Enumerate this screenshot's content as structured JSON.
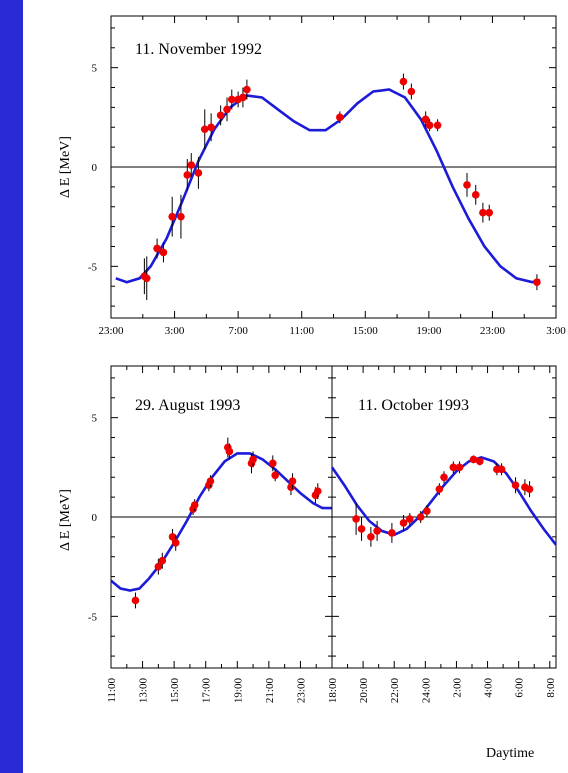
{
  "colors": {
    "background": "#2a2ad6",
    "paper": "#ffffff",
    "fit_line": "#1c1cd8",
    "points": "#ee0000"
  },
  "xlabel": "Daytime",
  "chart_data": [
    {
      "type": "scatter",
      "title": "11. November 1992",
      "ylabel": "Δ E [MeV]",
      "ylim": [
        -7.6,
        7.6
      ],
      "yticks": [
        5,
        0,
        -5
      ],
      "ytick_labels": [
        "5",
        "0",
        "-5"
      ],
      "x_unit": "hours since 23:00",
      "xlim": [
        0,
        28
      ],
      "xticks": [
        0,
        4,
        8,
        12,
        16,
        20,
        24,
        28
      ],
      "xtick_labels": [
        "23:00",
        "3:00",
        "7:00",
        "11:00",
        "15:00",
        "19:00",
        "23:00",
        "3:00"
      ],
      "grid": false,
      "series": [
        {
          "kind": "points_with_errors",
          "points": [
            {
              "x": 2.1,
              "y": -5.5,
              "err": 0.9
            },
            {
              "x": 2.25,
              "y": -5.6,
              "err": 1.1
            },
            {
              "x": 2.9,
              "y": -4.1,
              "err": 0.5
            },
            {
              "x": 3.3,
              "y": -4.3,
              "err": 0.5
            },
            {
              "x": 3.85,
              "y": -2.5,
              "err": 1.0
            },
            {
              "x": 4.4,
              "y": -2.5,
              "err": 1.1
            },
            {
              "x": 4.8,
              "y": -0.4,
              "err": 0.8
            },
            {
              "x": 5.05,
              "y": 0.1,
              "err": 0.6
            },
            {
              "x": 5.5,
              "y": -0.3,
              "err": 0.8
            },
            {
              "x": 5.9,
              "y": 1.9,
              "err": 1.0
            },
            {
              "x": 6.3,
              "y": 2.0,
              "err": 0.7
            },
            {
              "x": 6.9,
              "y": 2.6,
              "err": 0.5
            },
            {
              "x": 7.3,
              "y": 2.9,
              "err": 0.6
            },
            {
              "x": 7.6,
              "y": 3.4,
              "err": 0.5
            },
            {
              "x": 8.0,
              "y": 3.4,
              "err": 0.4
            },
            {
              "x": 8.3,
              "y": 3.5,
              "err": 0.5
            },
            {
              "x": 8.55,
              "y": 3.9,
              "err": 0.5
            },
            {
              "x": 14.4,
              "y": 2.5,
              "err": 0.3
            },
            {
              "x": 18.4,
              "y": 4.3,
              "err": 0.4
            },
            {
              "x": 18.9,
              "y": 3.8,
              "err": 0.4
            },
            {
              "x": 19.8,
              "y": 2.4,
              "err": 0.4
            },
            {
              "x": 20.05,
              "y": 2.1,
              "err": 0.3
            },
            {
              "x": 20.55,
              "y": 2.1,
              "err": 0.3
            },
            {
              "x": 22.4,
              "y": -0.9,
              "err": 0.6
            },
            {
              "x": 22.95,
              "y": -1.4,
              "err": 0.5
            },
            {
              "x": 23.4,
              "y": -2.3,
              "err": 0.5
            },
            {
              "x": 23.8,
              "y": -2.3,
              "err": 0.4
            },
            {
              "x": 26.8,
              "y": -5.8,
              "err": 0.4
            }
          ]
        },
        {
          "kind": "fit_line",
          "x": [
            0.3,
            1.0,
            1.8,
            2.5,
            3.5,
            4.5,
            5.5,
            6.5,
            7.5,
            8.5,
            9.5,
            10.5,
            11.5,
            12.5,
            13.5,
            14.5,
            15.5,
            16.5,
            17.5,
            18.5,
            19.5,
            20.5,
            21.5,
            22.5,
            23.5,
            24.5,
            25.5,
            26.5,
            27.0
          ],
          "y": [
            -5.6,
            -5.8,
            -5.6,
            -5.0,
            -3.6,
            -1.7,
            0.3,
            1.9,
            3.0,
            3.6,
            3.5,
            2.9,
            2.3,
            1.85,
            1.85,
            2.4,
            3.2,
            3.8,
            3.9,
            3.5,
            2.4,
            0.8,
            -1.0,
            -2.6,
            -4.0,
            -5.0,
            -5.6,
            -5.8,
            -5.7
          ]
        }
      ]
    },
    {
      "type": "scatter",
      "title": "29. August 1993",
      "ylabel": "Δ E [MeV]",
      "ylim": [
        -7.6,
        7.6
      ],
      "yticks": [
        5,
        0,
        -5
      ],
      "ytick_labels": [
        "5",
        "0",
        "-5"
      ],
      "x_unit": "hours since 11:00",
      "xlim": [
        0,
        14
      ],
      "xticks": [
        0,
        2,
        4,
        6,
        8,
        10,
        12
      ],
      "xtick_labels": [
        "11:00",
        "13:00",
        "15:00",
        "17:00",
        "19:00",
        "21:00",
        "23:00"
      ],
      "grid": false,
      "series": [
        {
          "kind": "points_with_errors",
          "points": [
            {
              "x": 1.55,
              "y": -4.2,
              "err": 0.4
            },
            {
              "x": 3.0,
              "y": -2.5,
              "err": 0.4
            },
            {
              "x": 3.25,
              "y": -2.2,
              "err": 0.4
            },
            {
              "x": 3.9,
              "y": -1.0,
              "err": 0.4
            },
            {
              "x": 4.1,
              "y": -1.3,
              "err": 0.4
            },
            {
              "x": 5.2,
              "y": 0.4,
              "err": 0.3
            },
            {
              "x": 5.3,
              "y": 0.6,
              "err": 0.3
            },
            {
              "x": 6.2,
              "y": 1.6,
              "err": 0.3
            },
            {
              "x": 6.3,
              "y": 1.8,
              "err": 0.3
            },
            {
              "x": 7.4,
              "y": 3.5,
              "err": 0.5
            },
            {
              "x": 7.5,
              "y": 3.3,
              "err": 0.4
            },
            {
              "x": 8.9,
              "y": 2.7,
              "err": 0.5
            },
            {
              "x": 9.0,
              "y": 2.9,
              "err": 0.4
            },
            {
              "x": 10.25,
              "y": 2.7,
              "err": 0.4
            },
            {
              "x": 10.4,
              "y": 2.1,
              "err": 0.3
            },
            {
              "x": 11.4,
              "y": 1.5,
              "err": 0.4
            },
            {
              "x": 11.5,
              "y": 1.8,
              "err": 0.4
            },
            {
              "x": 12.95,
              "y": 1.1,
              "err": 0.4
            },
            {
              "x": 13.1,
              "y": 1.3,
              "err": 0.4
            }
          ]
        },
        {
          "kind": "fit_line",
          "x": [
            0,
            0.6,
            1.2,
            1.8,
            2.4,
            3.2,
            4.0,
            4.8,
            5.6,
            6.4,
            7.2,
            8.0,
            8.8,
            9.6,
            10.4,
            11.2,
            12.0,
            12.8,
            13.4,
            14.0
          ],
          "y": [
            -3.2,
            -3.6,
            -3.7,
            -3.6,
            -3.1,
            -2.3,
            -1.3,
            -0.2,
            1.0,
            2.0,
            2.8,
            3.2,
            3.2,
            2.9,
            2.4,
            1.8,
            1.2,
            0.7,
            0.45,
            0.45
          ]
        }
      ]
    },
    {
      "type": "scatter",
      "title": "11. October 1993",
      "ylim": [
        -7.6,
        7.6
      ],
      "x_unit": "hours since 18:00",
      "xlim": [
        0,
        14.4
      ],
      "xticks": [
        0,
        2,
        4,
        6,
        8,
        10,
        12,
        14
      ],
      "xtick_labels": [
        "18:00",
        "20:00",
        "22:00",
        "24:00",
        "2:00",
        "4:00",
        "6:00",
        "8:00"
      ],
      "grid": false,
      "series": [
        {
          "kind": "points_with_errors",
          "points": [
            {
              "x": 1.55,
              "y": -0.1,
              "err": 0.8
            },
            {
              "x": 1.9,
              "y": -0.6,
              "err": 0.6
            },
            {
              "x": 2.5,
              "y": -1.0,
              "err": 0.5
            },
            {
              "x": 2.9,
              "y": -0.7,
              "err": 0.5
            },
            {
              "x": 3.85,
              "y": -0.8,
              "err": 0.5
            },
            {
              "x": 4.6,
              "y": -0.3,
              "err": 0.4
            },
            {
              "x": 5.0,
              "y": -0.1,
              "err": 0.3
            },
            {
              "x": 5.7,
              "y": 0.0,
              "err": 0.3
            },
            {
              "x": 6.1,
              "y": 0.3,
              "err": 0.3
            },
            {
              "x": 6.9,
              "y": 1.4,
              "err": 0.3
            },
            {
              "x": 7.2,
              "y": 2.0,
              "err": 0.3
            },
            {
              "x": 7.8,
              "y": 2.5,
              "err": 0.3
            },
            {
              "x": 8.2,
              "y": 2.5,
              "err": 0.3
            },
            {
              "x": 9.1,
              "y": 2.9,
              "err": 0.2
            },
            {
              "x": 9.5,
              "y": 2.8,
              "err": 0.2
            },
            {
              "x": 10.6,
              "y": 2.4,
              "err": 0.3
            },
            {
              "x": 10.9,
              "y": 2.4,
              "err": 0.3
            },
            {
              "x": 11.8,
              "y": 1.6,
              "err": 0.4
            },
            {
              "x": 12.4,
              "y": 1.5,
              "err": 0.4
            },
            {
              "x": 12.7,
              "y": 1.4,
              "err": 0.4
            }
          ]
        },
        {
          "kind": "fit_line",
          "x": [
            0,
            0.8,
            1.6,
            2.4,
            3.2,
            4.0,
            4.8,
            5.6,
            6.4,
            7.2,
            8.0,
            8.8,
            9.6,
            10.4,
            11.2,
            12.0,
            12.8,
            13.6,
            14.4
          ],
          "y": [
            2.5,
            1.6,
            0.6,
            -0.2,
            -0.7,
            -0.9,
            -0.6,
            0.0,
            0.8,
            1.6,
            2.3,
            2.8,
            3.0,
            2.8,
            2.2,
            1.3,
            0.3,
            -0.6,
            -1.4
          ]
        }
      ]
    }
  ]
}
